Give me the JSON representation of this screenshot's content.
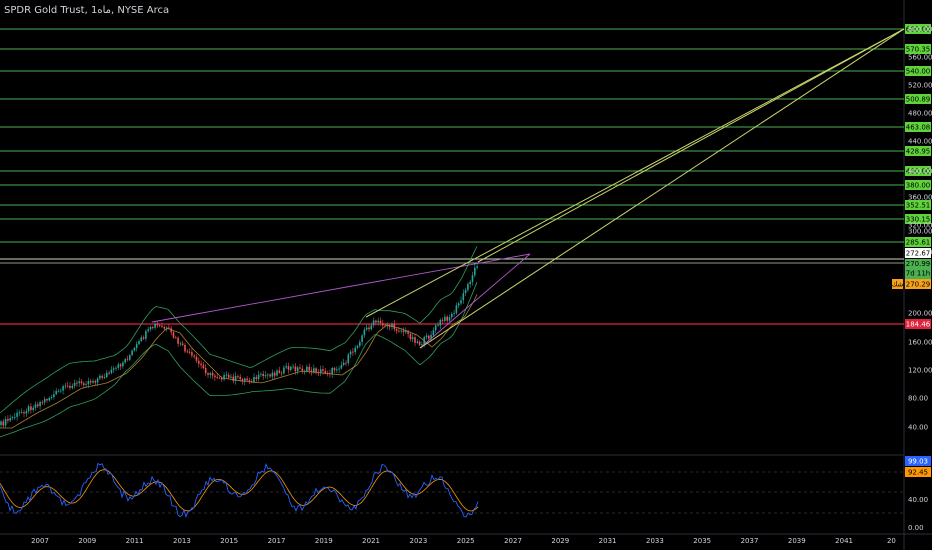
{
  "header": {
    "title": "SPDR Gold Trust, 1ماه, NYSE Arca"
  },
  "colors": {
    "background": "#000000",
    "level_line": "#4caf50",
    "level_tag": "#5fd33a",
    "trend_line": "#c9d36a",
    "resistance_line": "#b35bd0",
    "support_line": "#e0223a",
    "candle_up": "#26a69a",
    "candle_down": "#ef5350",
    "bollinger": "#2e9e5e",
    "ma": "#d7a13a",
    "rsi_line": "#2962ff",
    "rsi_signal": "#ff9800"
  },
  "price_axis": {
    "ticks": [
      "600.00",
      "560.00",
      "520.00",
      "480.00",
      "440.00",
      "400.00",
      "360.00",
      "320.00",
      "300.00",
      "280.00",
      "200.00",
      "160.00",
      "120.00",
      "80.00",
      "40.00"
    ],
    "level_tags": [
      "600.00",
      "570.35",
      "540.00",
      "500.89",
      "463.08",
      "428.95",
      "400.00",
      "380.00",
      "352.51",
      "330.15",
      "285.61"
    ],
    "white_tag": "272.67",
    "current_price": "270.99",
    "countdown": "7d 11h",
    "orange_tag": "270.29",
    "orange_tag_icon": "شك",
    "support_tag": "184.46"
  },
  "time_axis": {
    "labels": [
      "2007",
      "2009",
      "2011",
      "2013",
      "2015",
      "2017",
      "2019",
      "2021",
      "2023",
      "2025",
      "2027",
      "2029",
      "2031",
      "2033",
      "2035",
      "2037",
      "2039",
      "2041",
      "20"
    ]
  },
  "rsi_panel": {
    "ticks": [
      "40.00",
      "0.00"
    ],
    "rsi_value": "99.03",
    "signal_value": "92.45"
  }
}
